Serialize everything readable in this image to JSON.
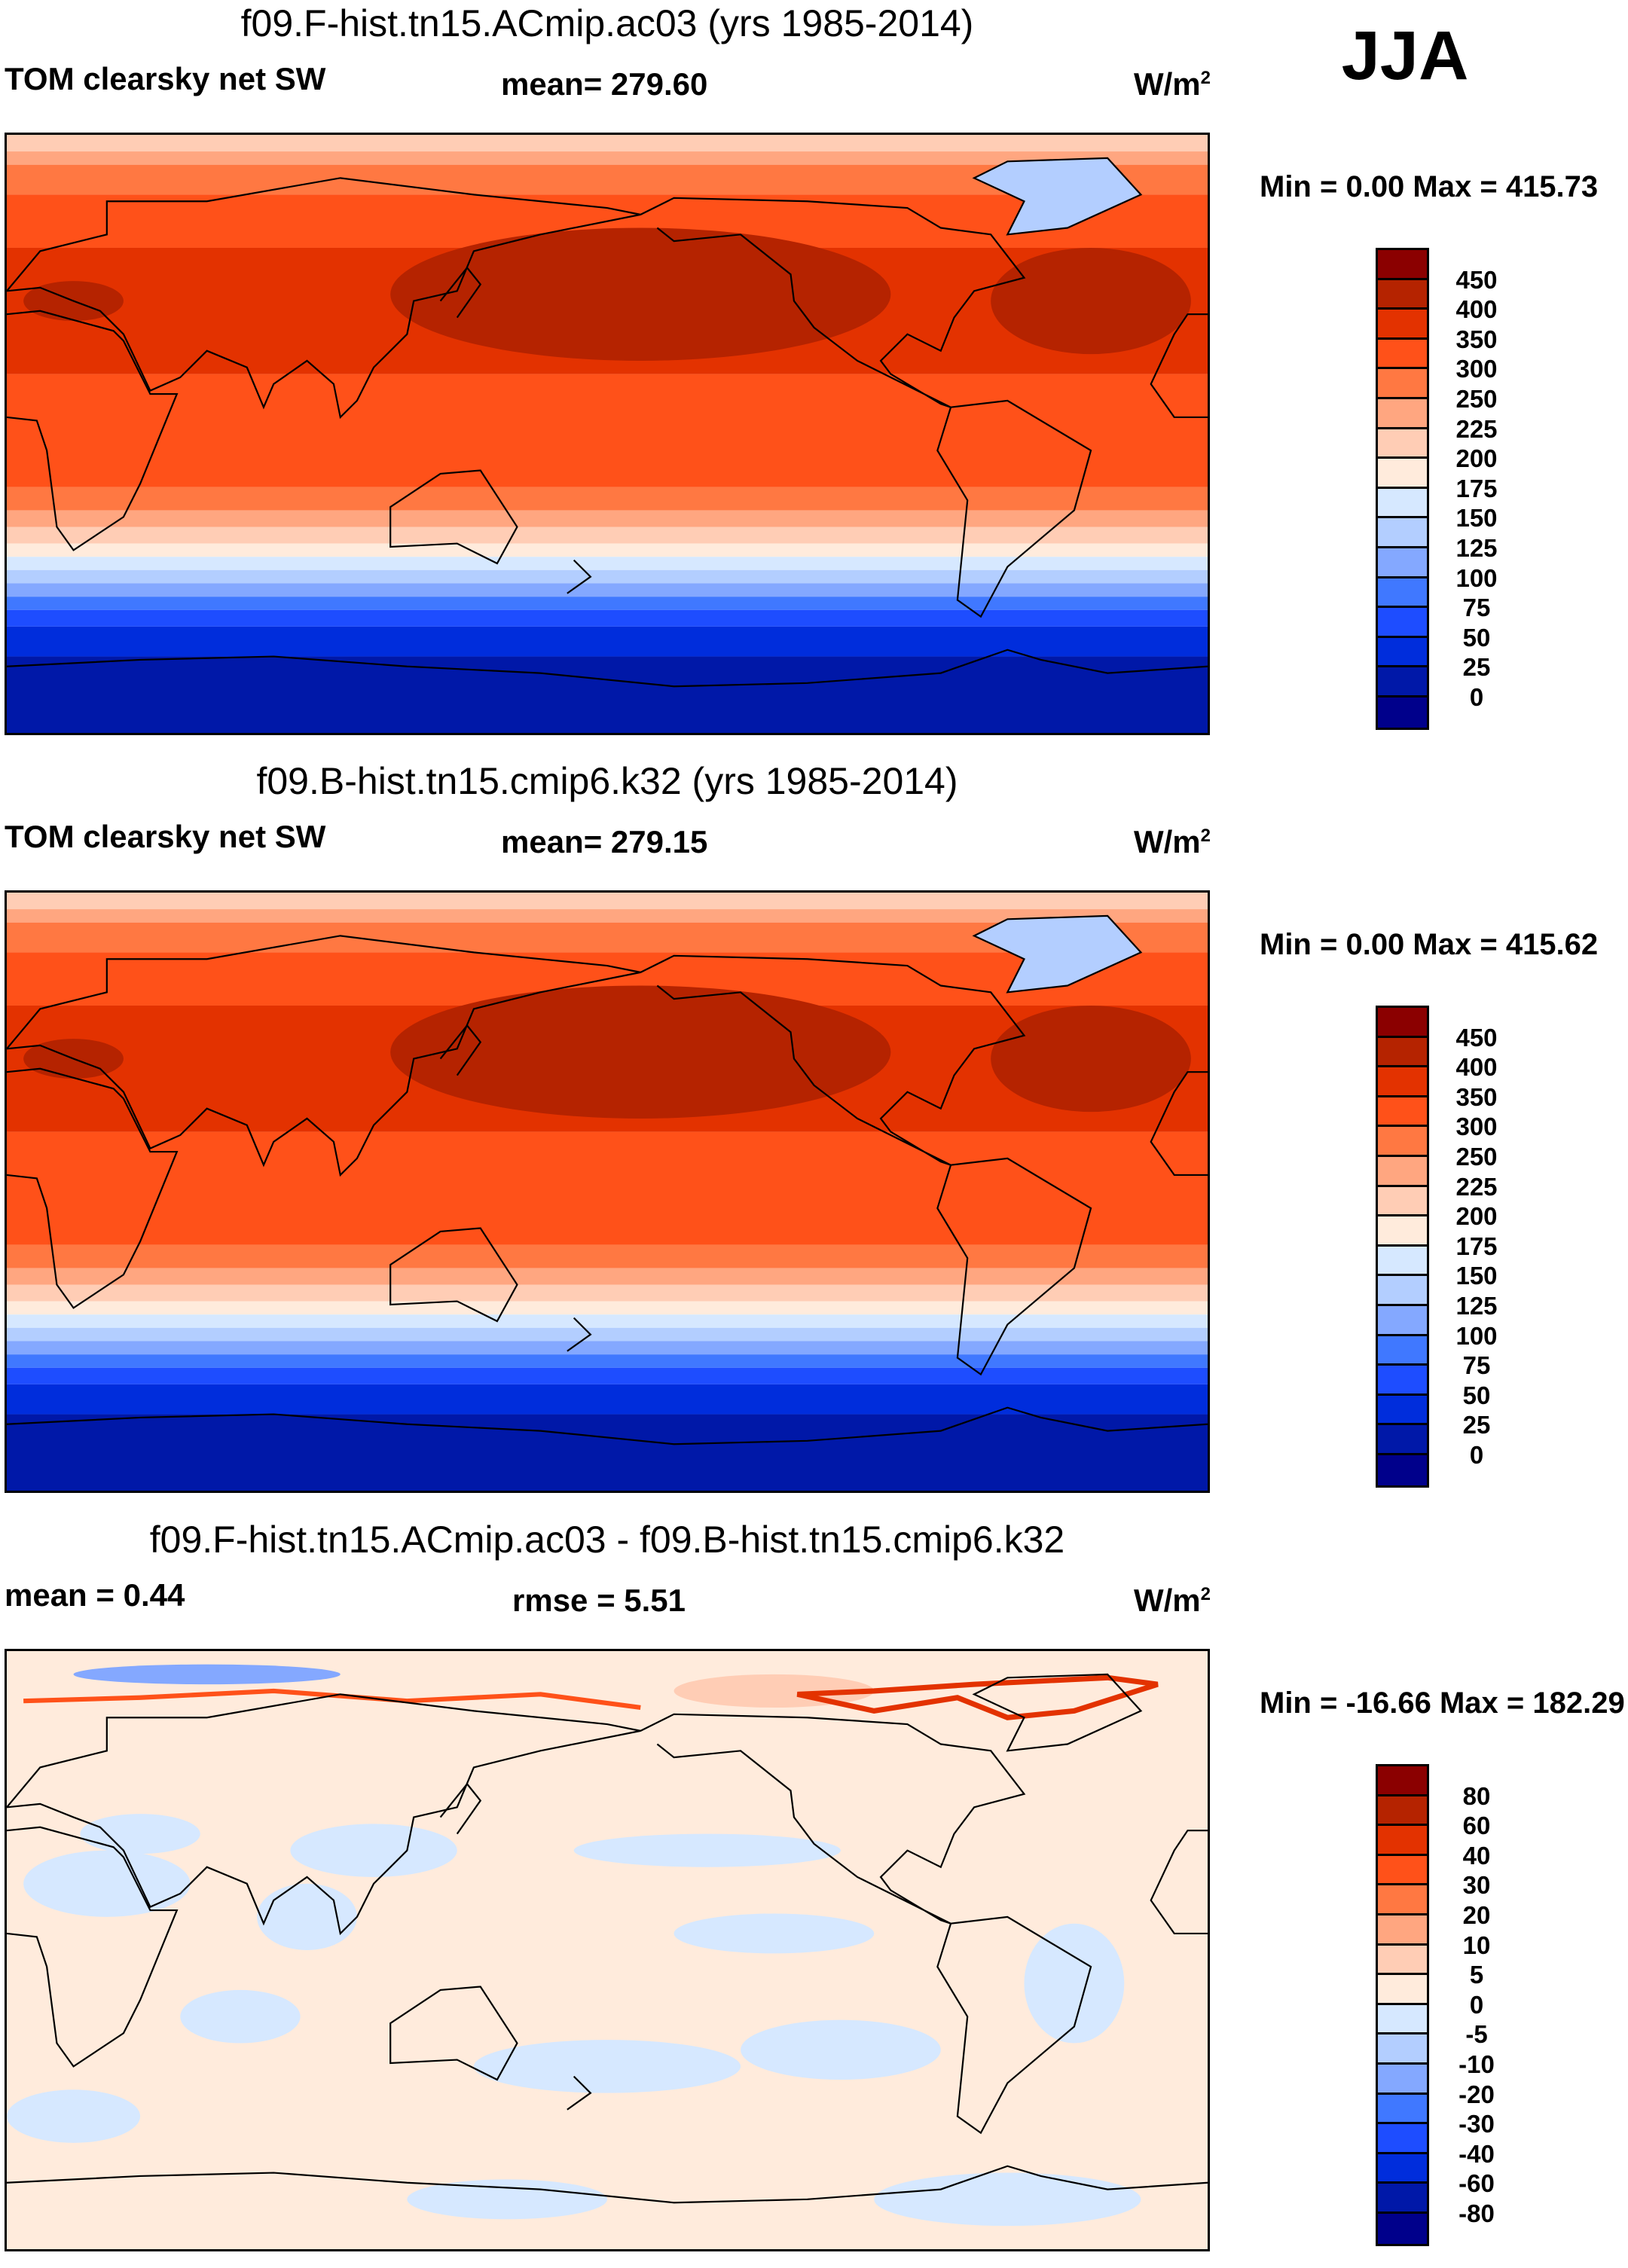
{
  "season": "JJA",
  "chart_data": [
    {
      "type": "heatmap",
      "title": "f09.F-hist.tn15.ACmip.ac03 (yrs 1985-2014)",
      "variable": "TOM clearsky net SW",
      "mean_label": "mean= 279.60",
      "units": "W/m",
      "units_sup": "2",
      "minmax": "Min =   0.00 Max = 415.73",
      "levels": [
        "450",
        "400",
        "350",
        "300",
        "250",
        "225",
        "200",
        "175",
        "150",
        "125",
        "100",
        "75",
        "50",
        "25",
        "0"
      ],
      "colors": [
        "#8b0000",
        "#b52300",
        "#e33200",
        "#ff5119",
        "#ff7842",
        "#ffa680",
        "#ffcdb5",
        "#ffebdc",
        "#d6e8ff",
        "#b3ceff",
        "#84a8ff",
        "#4078ff",
        "#1e4dff",
        "#002ddc",
        "#0018a8",
        "#00008b"
      ],
      "kind": "field"
    },
    {
      "type": "heatmap",
      "title": "f09.B-hist.tn15.cmip6.k32 (yrs 1985-2014)",
      "variable": "TOM clearsky net SW",
      "mean_label": "mean= 279.15",
      "units": "W/m",
      "units_sup": "2",
      "minmax": "Min =   0.00 Max = 415.62",
      "levels": [
        "450",
        "400",
        "350",
        "300",
        "250",
        "225",
        "200",
        "175",
        "150",
        "125",
        "100",
        "75",
        "50",
        "25",
        "0"
      ],
      "colors": [
        "#8b0000",
        "#b52300",
        "#e33200",
        "#ff5119",
        "#ff7842",
        "#ffa680",
        "#ffcdb5",
        "#ffebdc",
        "#d6e8ff",
        "#b3ceff",
        "#84a8ff",
        "#4078ff",
        "#1e4dff",
        "#002ddc",
        "#0018a8",
        "#00008b"
      ],
      "kind": "field"
    },
    {
      "type": "heatmap",
      "title": "f09.F-hist.tn15.ACmip.ac03 - f09.B-hist.tn15.cmip6.k32",
      "variable": "mean =   0.44",
      "mean_label": "rmse =   5.51",
      "units": "W/m",
      "units_sup": "2",
      "minmax": "Min = -16.66 Max = 182.29",
      "levels": [
        "80",
        "60",
        "40",
        "30",
        "20",
        "10",
        "5",
        "0",
        "-5",
        "-10",
        "-20",
        "-30",
        "-40",
        "-60",
        "-80"
      ],
      "colors": [
        "#8b0000",
        "#b52300",
        "#e33200",
        "#ff5119",
        "#ff7842",
        "#ffa680",
        "#ffcdb5",
        "#ffebdc",
        "#d6e8ff",
        "#b3ceff",
        "#84a8ff",
        "#4078ff",
        "#1e4dff",
        "#002ddc",
        "#0018a8",
        "#00008b"
      ],
      "kind": "diff"
    }
  ]
}
